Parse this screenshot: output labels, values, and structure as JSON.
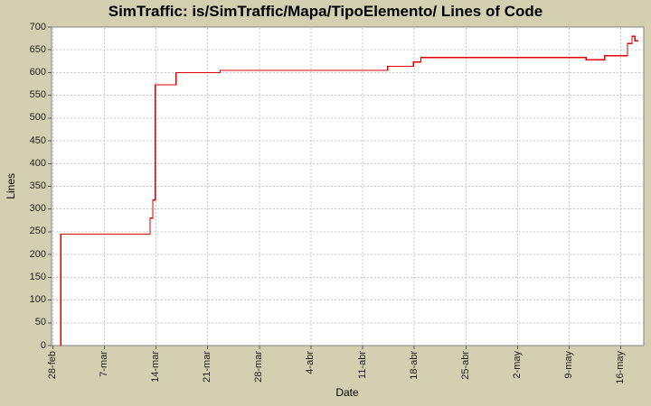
{
  "title": "SimTraffic: is/SimTraffic/Mapa/TipoElemento/ Lines of Code",
  "chart_data": {
    "type": "line",
    "style": "step",
    "title": "SimTraffic: is/SimTraffic/Mapa/TipoElemento/ Lines of Code",
    "xlabel": "Date",
    "ylabel": "Lines",
    "x_unit": "days since 28-feb",
    "x_tick_days": [
      0,
      7,
      14,
      21,
      28,
      35,
      42,
      49,
      56,
      63,
      70,
      77
    ],
    "x_tick_labels": [
      "28-feb",
      "7-mar",
      "14-mar",
      "21-mar",
      "28-mar",
      "4-abr",
      "11-abr",
      "18-abr",
      "25-abr",
      "2-may",
      "9-may",
      "16-may"
    ],
    "ylim": [
      0,
      700
    ],
    "y_tick_step": 50,
    "grid": true,
    "legend_position": "none",
    "series": [
      {
        "name": "Lines of Code",
        "color": "#e00000",
        "points": [
          [
            1.0,
            0
          ],
          [
            1.1,
            245
          ],
          [
            13.2,
            280
          ],
          [
            13.55,
            320
          ],
          [
            13.9,
            573
          ],
          [
            16.7,
            600
          ],
          [
            22.7,
            605
          ],
          [
            45.4,
            614
          ],
          [
            48.9,
            623
          ],
          [
            49.9,
            633
          ],
          [
            72.3,
            628
          ],
          [
            74.8,
            637
          ],
          [
            77.9,
            664
          ],
          [
            78.5,
            680
          ],
          [
            78.9,
            670
          ],
          [
            79.4,
            670
          ]
        ]
      }
    ]
  },
  "colors": {
    "background": "#d3d0b1",
    "plot_background": "#ffffff",
    "grid": "#c8c8c8",
    "plot_border": "#848484",
    "tick": "#5a5a5a",
    "text": "#000000",
    "line": "#e00000"
  }
}
